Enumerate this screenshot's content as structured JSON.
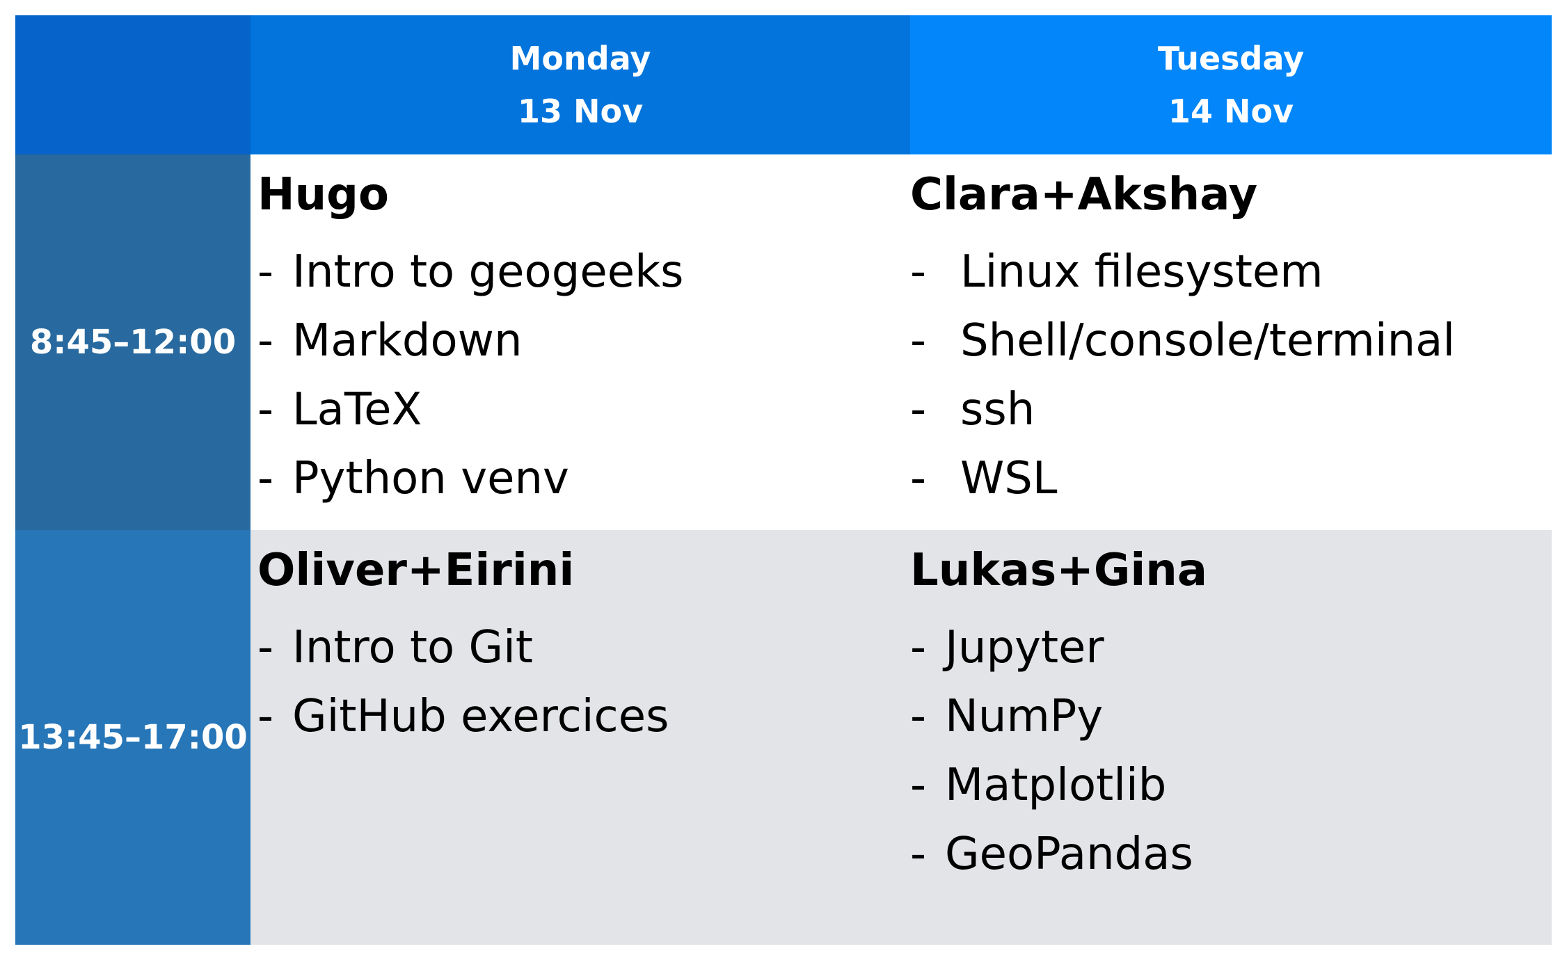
{
  "days": [
    {
      "name": "Monday",
      "date": "13 Nov"
    },
    {
      "name": "Tuesday",
      "date": "14 Nov"
    }
  ],
  "times": [
    "8:45–12:00",
    "13:45–17:00"
  ],
  "sessions": {
    "monday_am": {
      "presenter": "Hugo",
      "topics": [
        "Intro to geogeeks",
        "Markdown",
        "LaTeX",
        "Python venv"
      ]
    },
    "tuesday_am": {
      "presenter": "Clara+Akshay",
      "topics": [
        "Linux filesystem",
        "Shell/console/terminal",
        "ssh",
        "WSL"
      ]
    },
    "monday_pm": {
      "presenter": "Oliver+Eirini",
      "topics": [
        "Intro to Git",
        "GitHub exercices"
      ]
    },
    "tuesday_pm": {
      "presenter": "Lukas+Gina",
      "topics": [
        "Jupyter",
        "NumPy",
        "Matplotlib",
        "GeoPandas"
      ]
    }
  },
  "bullet": "-",
  "colors": {
    "corner": "#0563c9",
    "monday_header": "#0274dc",
    "tuesday_header": "#0286fa",
    "morning_time": "#286a9f",
    "afternoon_time": "#2676b8",
    "afternoon_row": "#e3e4e8"
  }
}
